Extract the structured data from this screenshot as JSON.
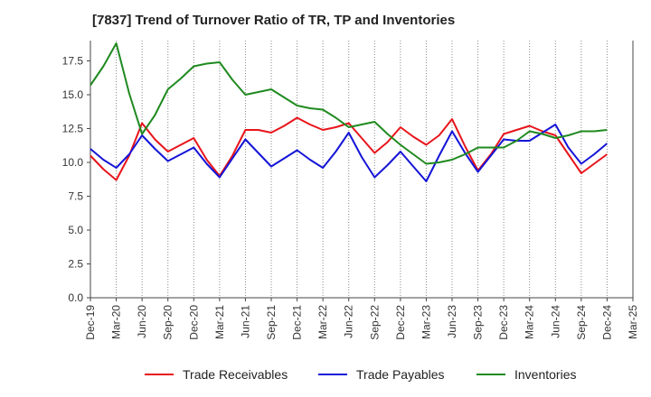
{
  "chart_data": {
    "type": "line",
    "title": "[7837]  Trend of Turnover Ratio of TR, TP and Inventories",
    "xlabel": "",
    "ylabel": "",
    "ylim": [
      0,
      17.5
    ],
    "y_ticks": [
      "0.0",
      "2.5",
      "5.0",
      "7.5",
      "10.0",
      "12.5",
      "15.0",
      "17.5"
    ],
    "x_tick_labels": [
      "Dec-19",
      "Mar-20",
      "Jun-20",
      "Sep-20",
      "Dec-20",
      "Mar-21",
      "Jun-21",
      "Sep-21",
      "Dec-21",
      "Mar-22",
      "Jun-22",
      "Sep-22",
      "Dec-22",
      "Mar-23",
      "Jun-23",
      "Sep-23",
      "Dec-23",
      "Mar-24",
      "Jun-24",
      "Sep-24",
      "Dec-24",
      "Mar-25"
    ],
    "grid": "vertical dotted",
    "legend_position": "bottom",
    "series": [
      {
        "name": "Trade Receivables",
        "color": "#e8141b",
        "values": [
          10.5,
          9.5,
          8.7,
          10.5,
          12.9,
          11.7,
          10.8,
          11.3,
          11.8,
          10.2,
          9.0,
          10.5,
          12.4,
          12.4,
          12.2,
          12.7,
          13.3,
          12.8,
          12.4,
          12.6,
          12.9,
          11.8,
          10.7,
          11.5,
          12.6,
          11.9,
          11.3,
          12.0,
          13.2,
          11.2,
          9.4,
          10.6,
          12.1,
          12.4,
          12.7,
          12.3,
          12.0,
          10.6,
          9.2,
          9.9,
          10.6
        ],
        "x_index": [
          0,
          0.5,
          1,
          1.5,
          2,
          2.5,
          3,
          3.5,
          4,
          4.5,
          5,
          5.5,
          6,
          6.5,
          7,
          7.5,
          8,
          8.5,
          9,
          9.5,
          10,
          10.5,
          11,
          11.5,
          12,
          12.5,
          13,
          13.5,
          14,
          14.5,
          15,
          15.5,
          16,
          16.5,
          17,
          17.5,
          18,
          18.5,
          19,
          19.5,
          20
        ]
      },
      {
        "name": "Trade Payables",
        "color": "#1414d7",
        "values": [
          11.0,
          10.2,
          9.6,
          10.6,
          12.0,
          11.0,
          10.1,
          10.6,
          11.1,
          9.9,
          8.9,
          10.3,
          11.7,
          10.7,
          9.7,
          10.3,
          10.9,
          10.2,
          9.6,
          10.8,
          12.2,
          10.4,
          8.9,
          9.8,
          10.8,
          9.7,
          8.6,
          10.5,
          12.3,
          10.7,
          9.3,
          10.5,
          11.7,
          11.6,
          11.6,
          12.2,
          12.8,
          11.1,
          9.9,
          10.6,
          11.4
        ],
        "x_index": [
          0,
          0.5,
          1,
          1.5,
          2,
          2.5,
          3,
          3.5,
          4,
          4.5,
          5,
          5.5,
          6,
          6.5,
          7,
          7.5,
          8,
          8.5,
          9,
          9.5,
          10,
          10.5,
          11,
          11.5,
          12,
          12.5,
          13,
          13.5,
          14,
          14.5,
          15,
          15.5,
          16,
          16.5,
          17,
          17.5,
          18,
          18.5,
          19,
          19.5,
          20
        ]
      },
      {
        "name": "Inventories",
        "color": "#1f8a1f",
        "values": [
          15.7,
          17.1,
          18.8,
          15.1,
          12.1,
          13.5,
          15.4,
          16.2,
          17.1,
          17.3,
          17.4,
          16.1,
          15.0,
          15.2,
          15.4,
          14.8,
          14.2,
          14.0,
          13.9,
          13.3,
          12.6,
          12.8,
          13.0,
          12.1,
          11.3,
          10.6,
          9.9,
          10.0,
          10.2,
          10.6,
          11.1,
          11.1,
          11.1,
          11.6,
          12.3,
          12.1,
          11.8,
          12.0,
          12.3,
          12.3,
          12.4
        ],
        "x_index": [
          0,
          0.5,
          1,
          1.5,
          2,
          2.5,
          3,
          3.5,
          4,
          4.5,
          5,
          5.5,
          6,
          6.5,
          7,
          7.5,
          8,
          8.5,
          9,
          9.5,
          10,
          10.5,
          11,
          11.5,
          12,
          12.5,
          13,
          13.5,
          14,
          14.5,
          15,
          15.5,
          16,
          16.5,
          17,
          17.5,
          18,
          18.5,
          19,
          19.5,
          20
        ]
      }
    ]
  }
}
